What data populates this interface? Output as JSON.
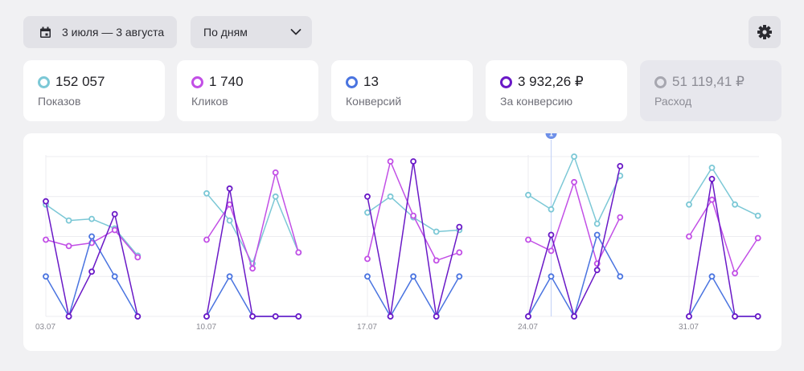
{
  "toolbar": {
    "date_range": "3 июля — 3 августа",
    "period": "По дням"
  },
  "metrics": [
    {
      "value": "152 057",
      "label": "Показов",
      "color": "#7cc8d6",
      "active": true
    },
    {
      "value": "1 740",
      "label": "Кликов",
      "color": "#c24fe6",
      "active": true
    },
    {
      "value": "13",
      "label": "Конверсий",
      "color": "#4a74e0",
      "active": true
    },
    {
      "value": "3 932,26 ₽",
      "label": "За конверсию",
      "color": "#6a19c7",
      "active": true
    },
    {
      "value": "51 119,41 ₽",
      "label": "Расход",
      "color": "#a7a7b0",
      "active": false
    }
  ],
  "chart_data": {
    "type": "line",
    "x_tick_labels": [
      "03.07",
      "10.07",
      "17.07",
      "24.07",
      "31.07"
    ],
    "annotation": {
      "label": "1",
      "day_index": 22
    },
    "series": [
      {
        "color": "#7cc8d6",
        "values": [
          0.7,
          0.6,
          0.61,
          0.55,
          0.38,
          null,
          null,
          0.77,
          0.6,
          0.33,
          0.75,
          0.4,
          null,
          null,
          0.65,
          0.75,
          0.62,
          0.53,
          0.54,
          null,
          null,
          0.76,
          0.67,
          1.0,
          0.58,
          0.88,
          null,
          null,
          0.7,
          0.93,
          0.7,
          0.63,
          null
        ]
      },
      {
        "color": "#c24fe6",
        "values": [
          0.48,
          0.44,
          0.46,
          0.54,
          0.37,
          null,
          null,
          0.48,
          0.7,
          0.3,
          0.9,
          0.4,
          null,
          null,
          0.36,
          0.97,
          0.63,
          0.35,
          0.4,
          null,
          null,
          0.48,
          0.41,
          0.84,
          0.33,
          0.62,
          null,
          null,
          0.5,
          0.73,
          0.27,
          0.49,
          null
        ]
      },
      {
        "color": "#4a74e0",
        "values": [
          0.25,
          0.0,
          0.5,
          0.25,
          0.0,
          null,
          null,
          0.0,
          0.25,
          0.0,
          0.0,
          0.0,
          null,
          null,
          0.25,
          0.0,
          0.25,
          0.0,
          0.25,
          null,
          null,
          0.0,
          0.25,
          0.0,
          0.51,
          0.25,
          null,
          null,
          0.0,
          0.25,
          0.0,
          0.0,
          null
        ]
      },
      {
        "color": "#6a19c7",
        "values": [
          0.72,
          0.0,
          0.28,
          0.64,
          0.0,
          null,
          null,
          0.0,
          0.8,
          0.0,
          0.0,
          0.0,
          null,
          null,
          0.75,
          0.0,
          0.97,
          0.0,
          0.56,
          null,
          null,
          0.0,
          0.51,
          0.0,
          0.29,
          0.94,
          null,
          null,
          0.0,
          0.86,
          0.0,
          0.0,
          null
        ]
      }
    ]
  }
}
